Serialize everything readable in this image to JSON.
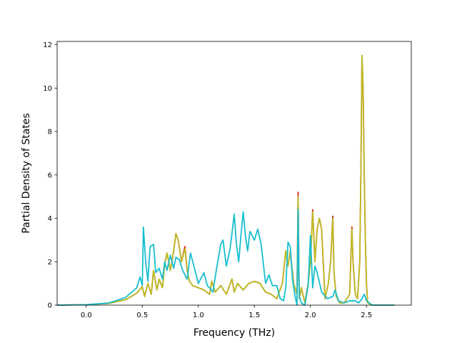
{
  "chart_data": {
    "type": "line",
    "title": "",
    "xlabel": "Frequency (THz)",
    "ylabel": "Partial Density of States",
    "xlim": [
      -0.26,
      2.9
    ],
    "ylim": [
      0,
      12.15
    ],
    "xticks": [
      0.0,
      0.5,
      1.0,
      1.5,
      2.0,
      2.5
    ],
    "xtick_labels": [
      "0.0",
      "0.5",
      "1.0",
      "1.5",
      "2.0",
      "2.5"
    ],
    "yticks": [
      0,
      2,
      4,
      6,
      8,
      10,
      12
    ],
    "ytick_labels": [
      "0",
      "2",
      "4",
      "6",
      "8",
      "10",
      "12"
    ],
    "grid": false,
    "legend": "none",
    "series": [
      {
        "color": "#d62728",
        "x": [
          -0.26,
          0.0,
          0.2,
          0.35,
          0.45,
          0.5,
          0.52,
          0.55,
          0.58,
          0.6,
          0.63,
          0.65,
          0.68,
          0.7,
          0.72,
          0.75,
          0.78,
          0.8,
          0.82,
          0.85,
          0.88,
          0.9,
          0.92,
          0.95,
          1.0,
          1.05,
          1.1,
          1.12,
          1.15,
          1.2,
          1.25,
          1.3,
          1.32,
          1.35,
          1.4,
          1.45,
          1.5,
          1.55,
          1.6,
          1.65,
          1.7,
          1.75,
          1.78,
          1.8,
          1.82,
          1.85,
          1.88,
          1.89,
          1.9,
          1.92,
          1.95,
          1.98,
          2.0,
          2.02,
          2.04,
          2.06,
          2.08,
          2.1,
          2.13,
          2.16,
          2.18,
          2.2,
          2.21,
          2.23,
          2.26,
          2.3,
          2.35,
          2.37,
          2.38,
          2.4,
          2.42,
          2.44,
          2.45,
          2.46,
          2.47,
          2.48,
          2.49,
          2.5,
          2.51,
          2.55,
          2.75
        ],
        "y": [
          0,
          0.02,
          0.08,
          0.25,
          0.55,
          0.85,
          0.4,
          1.0,
          0.5,
          1.6,
          0.7,
          1.2,
          0.8,
          1.9,
          2.4,
          1.6,
          2.5,
          3.3,
          3.0,
          2.0,
          2.7,
          1.6,
          1.1,
          0.9,
          0.8,
          0.7,
          0.5,
          1.1,
          0.6,
          0.9,
          0.5,
          1.2,
          0.6,
          1.0,
          0.7,
          1.0,
          1.1,
          1.0,
          0.6,
          0.5,
          0.3,
          1.0,
          2.5,
          1.8,
          2.5,
          1.0,
          0.5,
          5.2,
          0.3,
          0.8,
          0.1,
          1.0,
          2.0,
          4.4,
          2.0,
          3.5,
          4.0,
          3.5,
          0.3,
          1.0,
          2.0,
          4.1,
          1.5,
          0.4,
          0.1,
          0.1,
          0.5,
          3.6,
          2.0,
          0.5,
          0.3,
          2.0,
          6.0,
          11.5,
          10.0,
          6.0,
          3.0,
          1.0,
          0.1,
          0.0,
          0.0
        ]
      },
      {
        "color": "#bcbd22",
        "x": [
          -0.26,
          0.0,
          0.2,
          0.35,
          0.45,
          0.5,
          0.52,
          0.55,
          0.58,
          0.6,
          0.63,
          0.65,
          0.68,
          0.7,
          0.72,
          0.75,
          0.78,
          0.8,
          0.82,
          0.85,
          0.88,
          0.9,
          0.92,
          0.95,
          1.0,
          1.05,
          1.1,
          1.12,
          1.15,
          1.2,
          1.25,
          1.3,
          1.32,
          1.35,
          1.4,
          1.45,
          1.5,
          1.55,
          1.6,
          1.65,
          1.7,
          1.75,
          1.78,
          1.8,
          1.82,
          1.85,
          1.88,
          1.89,
          1.9,
          1.92,
          1.95,
          1.98,
          2.0,
          2.02,
          2.04,
          2.06,
          2.08,
          2.1,
          2.13,
          2.16,
          2.18,
          2.2,
          2.21,
          2.23,
          2.26,
          2.3,
          2.35,
          2.37,
          2.38,
          2.4,
          2.42,
          2.44,
          2.45,
          2.46,
          2.47,
          2.48,
          2.49,
          2.5,
          2.51,
          2.55,
          2.75
        ],
        "y": [
          0,
          0.02,
          0.08,
          0.25,
          0.55,
          0.85,
          0.4,
          1.0,
          0.5,
          1.6,
          0.7,
          1.2,
          0.8,
          1.9,
          2.4,
          1.6,
          2.5,
          3.3,
          3.0,
          2.0,
          2.6,
          1.6,
          1.1,
          0.9,
          0.8,
          0.7,
          0.5,
          1.1,
          0.6,
          0.9,
          0.5,
          1.2,
          0.6,
          1.0,
          0.7,
          1.0,
          1.1,
          1.0,
          0.6,
          0.5,
          0.3,
          1.0,
          2.5,
          1.8,
          2.5,
          1.0,
          0.5,
          5.0,
          0.3,
          0.8,
          0.1,
          1.0,
          2.0,
          4.3,
          2.0,
          3.5,
          4.0,
          3.5,
          0.3,
          1.0,
          2.0,
          4.0,
          1.5,
          0.4,
          0.1,
          0.1,
          0.5,
          3.5,
          2.0,
          0.5,
          0.3,
          2.0,
          6.0,
          11.5,
          10.0,
          6.0,
          3.0,
          1.0,
          0.1,
          0.0,
          0.0
        ]
      },
      {
        "color": "#17becf",
        "x": [
          -0.26,
          0.0,
          0.2,
          0.35,
          0.45,
          0.48,
          0.5,
          0.51,
          0.53,
          0.55,
          0.57,
          0.6,
          0.62,
          0.65,
          0.68,
          0.7,
          0.72,
          0.75,
          0.78,
          0.8,
          0.83,
          0.86,
          0.9,
          0.93,
          0.96,
          1.0,
          1.05,
          1.08,
          1.1,
          1.13,
          1.16,
          1.2,
          1.22,
          1.25,
          1.28,
          1.3,
          1.32,
          1.34,
          1.36,
          1.38,
          1.4,
          1.42,
          1.44,
          1.46,
          1.5,
          1.53,
          1.56,
          1.6,
          1.63,
          1.66,
          1.7,
          1.73,
          1.76,
          1.78,
          1.8,
          1.82,
          1.84,
          1.86,
          1.88,
          1.89,
          1.9,
          1.92,
          1.95,
          1.98,
          2.0,
          2.02,
          2.04,
          2.06,
          2.1,
          2.15,
          2.2,
          2.22,
          2.25,
          2.3,
          2.35,
          2.4,
          2.43,
          2.46,
          2.48,
          2.5,
          2.55,
          2.75
        ],
        "y": [
          0,
          0.02,
          0.1,
          0.35,
          0.8,
          1.3,
          0.9,
          3.6,
          2.0,
          1.1,
          2.7,
          2.8,
          1.5,
          1.7,
          1.2,
          2.0,
          1.6,
          2.3,
          1.7,
          2.2,
          2.1,
          1.6,
          1.2,
          2.4,
          1.8,
          1.0,
          1.5,
          0.9,
          0.8,
          0.6,
          1.6,
          2.8,
          3.0,
          1.8,
          2.5,
          3.3,
          4.2,
          2.8,
          2.0,
          3.2,
          4.3,
          3.2,
          2.5,
          3.4,
          3.0,
          3.5,
          2.8,
          1.0,
          1.4,
          0.9,
          0.9,
          0.3,
          0.2,
          0.8,
          2.9,
          2.7,
          1.2,
          0.5,
          0.0,
          4.4,
          0.4,
          0.1,
          0.0,
          0.9,
          3.2,
          0.8,
          1.8,
          1.5,
          0.6,
          0.3,
          0.4,
          0.7,
          0.2,
          0.1,
          0.2,
          0.2,
          0.1,
          0.3,
          0.5,
          0.2,
          0.0,
          0.0
        ]
      }
    ]
  }
}
